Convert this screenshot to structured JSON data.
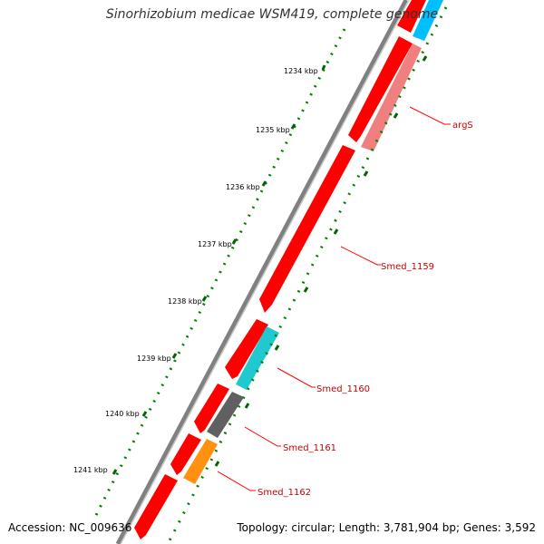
{
  "title": "Sinorhizobium medicae WSM419, complete genome",
  "accession": "Accession: NC_009636",
  "topology": "Topology: circular; Length: 3,781,904 bp; Genes: 3,592",
  "ruler": {
    "unit": "kbp",
    "ticks": [
      "1234 kbp",
      "1235 kbp",
      "1236 kbp",
      "1237 kbp",
      "1238 kbp",
      "1239 kbp",
      "1240 kbp",
      "1241 kbp"
    ]
  },
  "genes": [
    {
      "label": "argS",
      "color": "#f08080"
    },
    {
      "label": "Smed_1159",
      "color": "#ff0000"
    },
    {
      "label": "Smed_1160",
      "color": "#20c8d0"
    },
    {
      "label": "Smed_1161",
      "color": "#606060"
    },
    {
      "label": "Smed_1162",
      "color": "#ff9010"
    }
  ],
  "colors": {
    "cds_forward": "#ff0000",
    "ruler_dots": "#008000",
    "backbone": "#808080",
    "label_line": "#ff0000",
    "top_feature": "#00bfff"
  }
}
